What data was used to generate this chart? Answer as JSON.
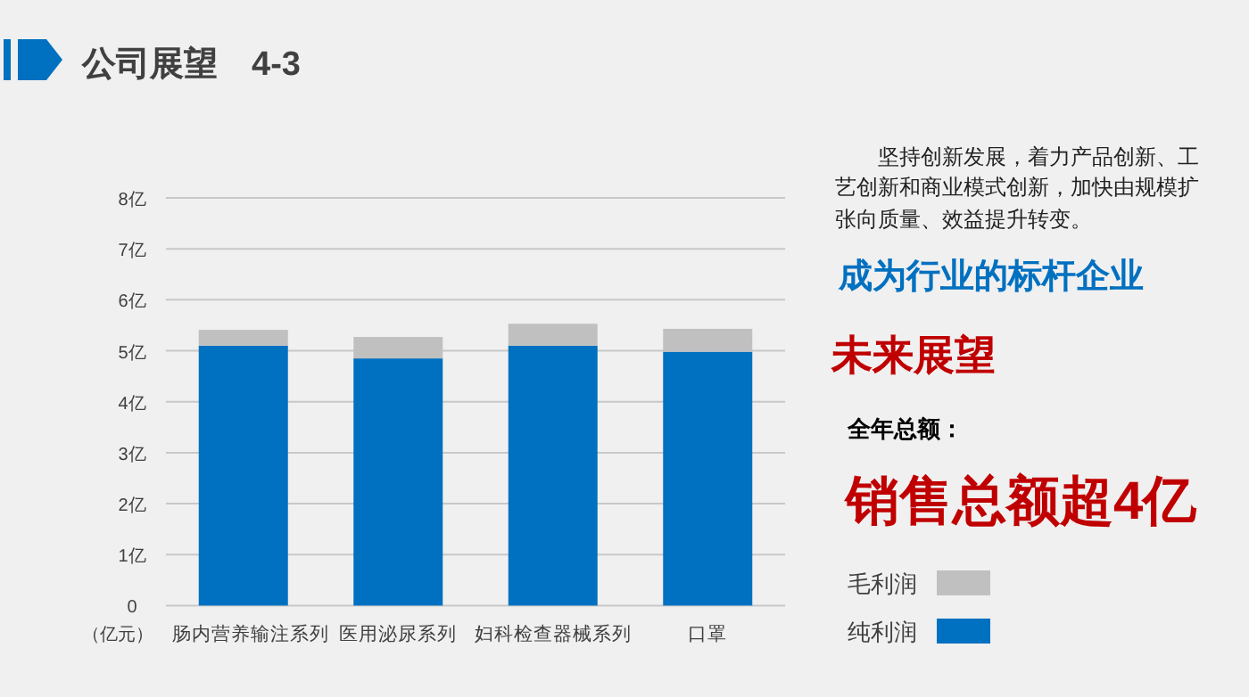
{
  "chart_data": {
    "type": "bar",
    "title": "公司展望　4-3",
    "ylabel": "（亿元）",
    "stacked": true,
    "categories": [
      "肠内营养输注系列",
      "医用泌尿系列",
      "妇科检查器械系列",
      "口罩"
    ],
    "series": [
      {
        "name": "纯利润",
        "color": "#0070c0",
        "values": [
          5.1,
          4.85,
          5.1,
          4.98
        ]
      },
      {
        "name": "毛利润",
        "color": "#c0c0c0",
        "values": [
          0.31,
          0.42,
          0.43,
          0.45
        ]
      }
    ],
    "ylim": [
      0,
      8
    ],
    "yticks": [
      0,
      {
        "value": 1,
        "label": "1亿"
      },
      {
        "value": 2,
        "label": "2亿"
      },
      {
        "value": 3,
        "label": "3亿"
      },
      {
        "value": 4,
        "label": "4亿"
      },
      {
        "value": 5,
        "label": "5亿"
      },
      {
        "value": 6,
        "label": "6亿"
      },
      {
        "value": 7,
        "label": "7亿"
      },
      {
        "value": 8,
        "label": "8亿"
      }
    ],
    "grid": "y",
    "legend": "right",
    "annotations": [
      "坚持创新发展，着力产品创新、工艺创新和商业模式创新，加快由规模扩张向质量、效益提升转变。",
      "成为行业的标杆企业",
      "未来展望",
      "全年总额：",
      "销售总额超4亿"
    ]
  }
}
